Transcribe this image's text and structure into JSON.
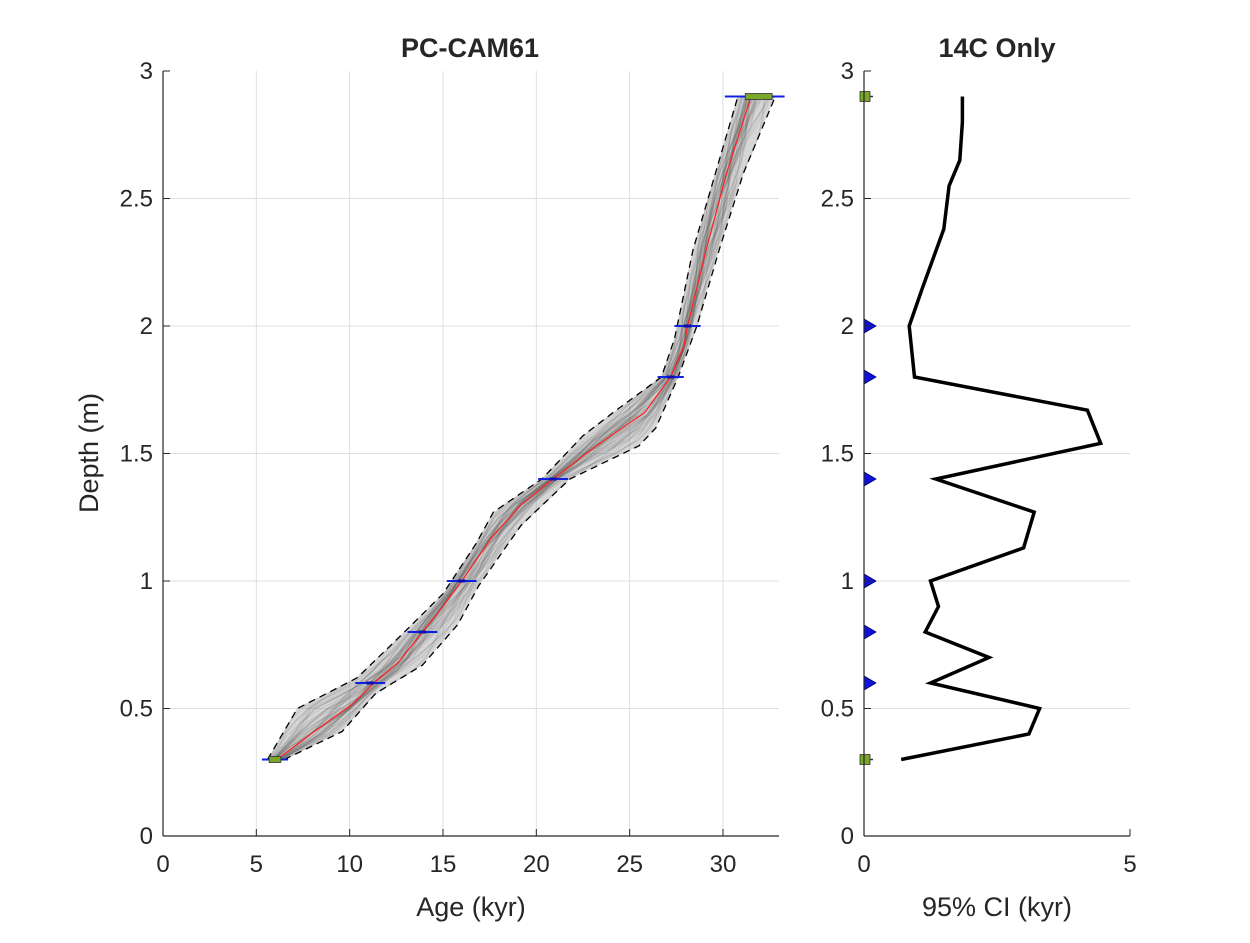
{
  "chart_data": [
    {
      "type": "line",
      "title": "PC-CAM61",
      "xlabel": "Age (kyr)",
      "ylabel": "Depth (m)",
      "xlim": [
        0,
        33
      ],
      "ylim": [
        0,
        3
      ],
      "xticks": [
        "0",
        "5",
        "10",
        "15",
        "20",
        "25",
        "30"
      ],
      "yticks": [
        "0",
        "0.5",
        "1",
        "1.5",
        "2",
        "2.5",
        "3"
      ],
      "grid": true,
      "series": [
        {
          "role": "median",
          "color": "#ff2020",
          "points": [
            [
              6.1,
              0.3
            ],
            [
              8.3,
              0.42
            ],
            [
              10.2,
              0.52
            ],
            [
              11.3,
              0.6
            ],
            [
              12.6,
              0.68
            ],
            [
              13.9,
              0.8
            ],
            [
              15.0,
              0.9
            ],
            [
              16.0,
              1.0
            ],
            [
              17.6,
              1.17
            ],
            [
              19.2,
              1.3
            ],
            [
              20.9,
              1.4
            ],
            [
              23.2,
              1.53
            ],
            [
              25.8,
              1.66
            ],
            [
              27.2,
              1.8
            ],
            [
              27.9,
              1.92
            ],
            [
              28.1,
              2.0
            ],
            [
              29.1,
              2.3
            ],
            [
              30.2,
              2.6
            ],
            [
              31.5,
              2.9
            ]
          ]
        },
        {
          "role": "lower-bound",
          "color": "#000000",
          "points": [
            [
              5.6,
              0.3
            ],
            [
              7.2,
              0.5
            ],
            [
              10.4,
              0.62
            ],
            [
              12.8,
              0.79
            ],
            [
              15.0,
              0.95
            ],
            [
              16.8,
              1.15
            ],
            [
              17.7,
              1.27
            ],
            [
              20.3,
              1.4
            ],
            [
              22.5,
              1.57
            ],
            [
              24.1,
              1.66
            ],
            [
              26.7,
              1.8
            ],
            [
              27.4,
              1.95
            ],
            [
              28.4,
              2.3
            ],
            [
              29.6,
              2.6
            ],
            [
              30.8,
              2.9
            ]
          ]
        },
        {
          "role": "upper-bound",
          "color": "#000000",
          "points": [
            [
              6.5,
              0.3
            ],
            [
              9.6,
              0.41
            ],
            [
              11.4,
              0.56
            ],
            [
              13.9,
              0.67
            ],
            [
              15.8,
              0.83
            ],
            [
              16.9,
              0.98
            ],
            [
              19.2,
              1.22
            ],
            [
              21.8,
              1.4
            ],
            [
              25.5,
              1.53
            ],
            [
              26.4,
              1.6
            ],
            [
              27.6,
              1.8
            ],
            [
              28.6,
              2.0
            ],
            [
              29.8,
              2.3
            ],
            [
              31.1,
              2.6
            ],
            [
              32.8,
              2.9
            ]
          ]
        }
      ],
      "dates": [
        {
          "age": 6.0,
          "depth": 0.3,
          "error": 0.7,
          "marker": "green-square"
        },
        {
          "age": 11.1,
          "depth": 0.6,
          "error": 0.8,
          "marker": "blue-errorbar"
        },
        {
          "age": 13.9,
          "depth": 0.8,
          "error": 0.8,
          "marker": "blue-errorbar"
        },
        {
          "age": 16.0,
          "depth": 1.0,
          "error": 0.8,
          "marker": "blue-errorbar"
        },
        {
          "age": 20.9,
          "depth": 1.4,
          "error": 0.8,
          "marker": "blue-errorbar"
        },
        {
          "age": 27.2,
          "depth": 1.8,
          "error": 0.7,
          "marker": "blue-errorbar"
        },
        {
          "age": 28.1,
          "depth": 2.0,
          "error": 0.7,
          "marker": "blue-errorbar"
        },
        {
          "age": 31.7,
          "depth": 2.9,
          "error": 1.6,
          "marker": "green-square"
        }
      ]
    },
    {
      "type": "line",
      "title": "14C Only",
      "xlabel": "95% CI (kyr)",
      "ylabel": "",
      "xlim": [
        0,
        5
      ],
      "ylim": [
        0,
        3
      ],
      "xticks": [
        "0",
        "5"
      ],
      "yticks": [
        "0",
        "0.5",
        "1",
        "1.5",
        "2",
        "2.5",
        "3"
      ],
      "grid": true,
      "series": [
        {
          "role": "ci-profile",
          "color": "#000000",
          "points": [
            [
              0.7,
              0.3
            ],
            [
              3.1,
              0.4
            ],
            [
              3.3,
              0.5
            ],
            [
              1.25,
              0.6
            ],
            [
              2.35,
              0.7
            ],
            [
              1.15,
              0.8
            ],
            [
              1.4,
              0.9
            ],
            [
              1.25,
              1.0
            ],
            [
              3.0,
              1.13
            ],
            [
              3.2,
              1.27
            ],
            [
              1.35,
              1.4
            ],
            [
              4.45,
              1.54
            ],
            [
              4.2,
              1.67
            ],
            [
              0.95,
              1.8
            ],
            [
              0.85,
              2.0
            ],
            [
              1.1,
              2.15
            ],
            [
              1.5,
              2.38
            ],
            [
              1.6,
              2.55
            ],
            [
              1.8,
              2.65
            ],
            [
              1.85,
              2.8
            ],
            [
              1.85,
              2.9
            ]
          ]
        }
      ],
      "markers": [
        {
          "depth": 0.3,
          "marker": "green-square"
        },
        {
          "depth": 0.6,
          "marker": "blue-triangle"
        },
        {
          "depth": 0.8,
          "marker": "blue-triangle"
        },
        {
          "depth": 1.0,
          "marker": "blue-triangle"
        },
        {
          "depth": 1.4,
          "marker": "blue-triangle"
        },
        {
          "depth": 1.8,
          "marker": "blue-triangle"
        },
        {
          "depth": 2.0,
          "marker": "blue-triangle"
        },
        {
          "depth": 2.9,
          "marker": "green-square"
        }
      ]
    }
  ]
}
